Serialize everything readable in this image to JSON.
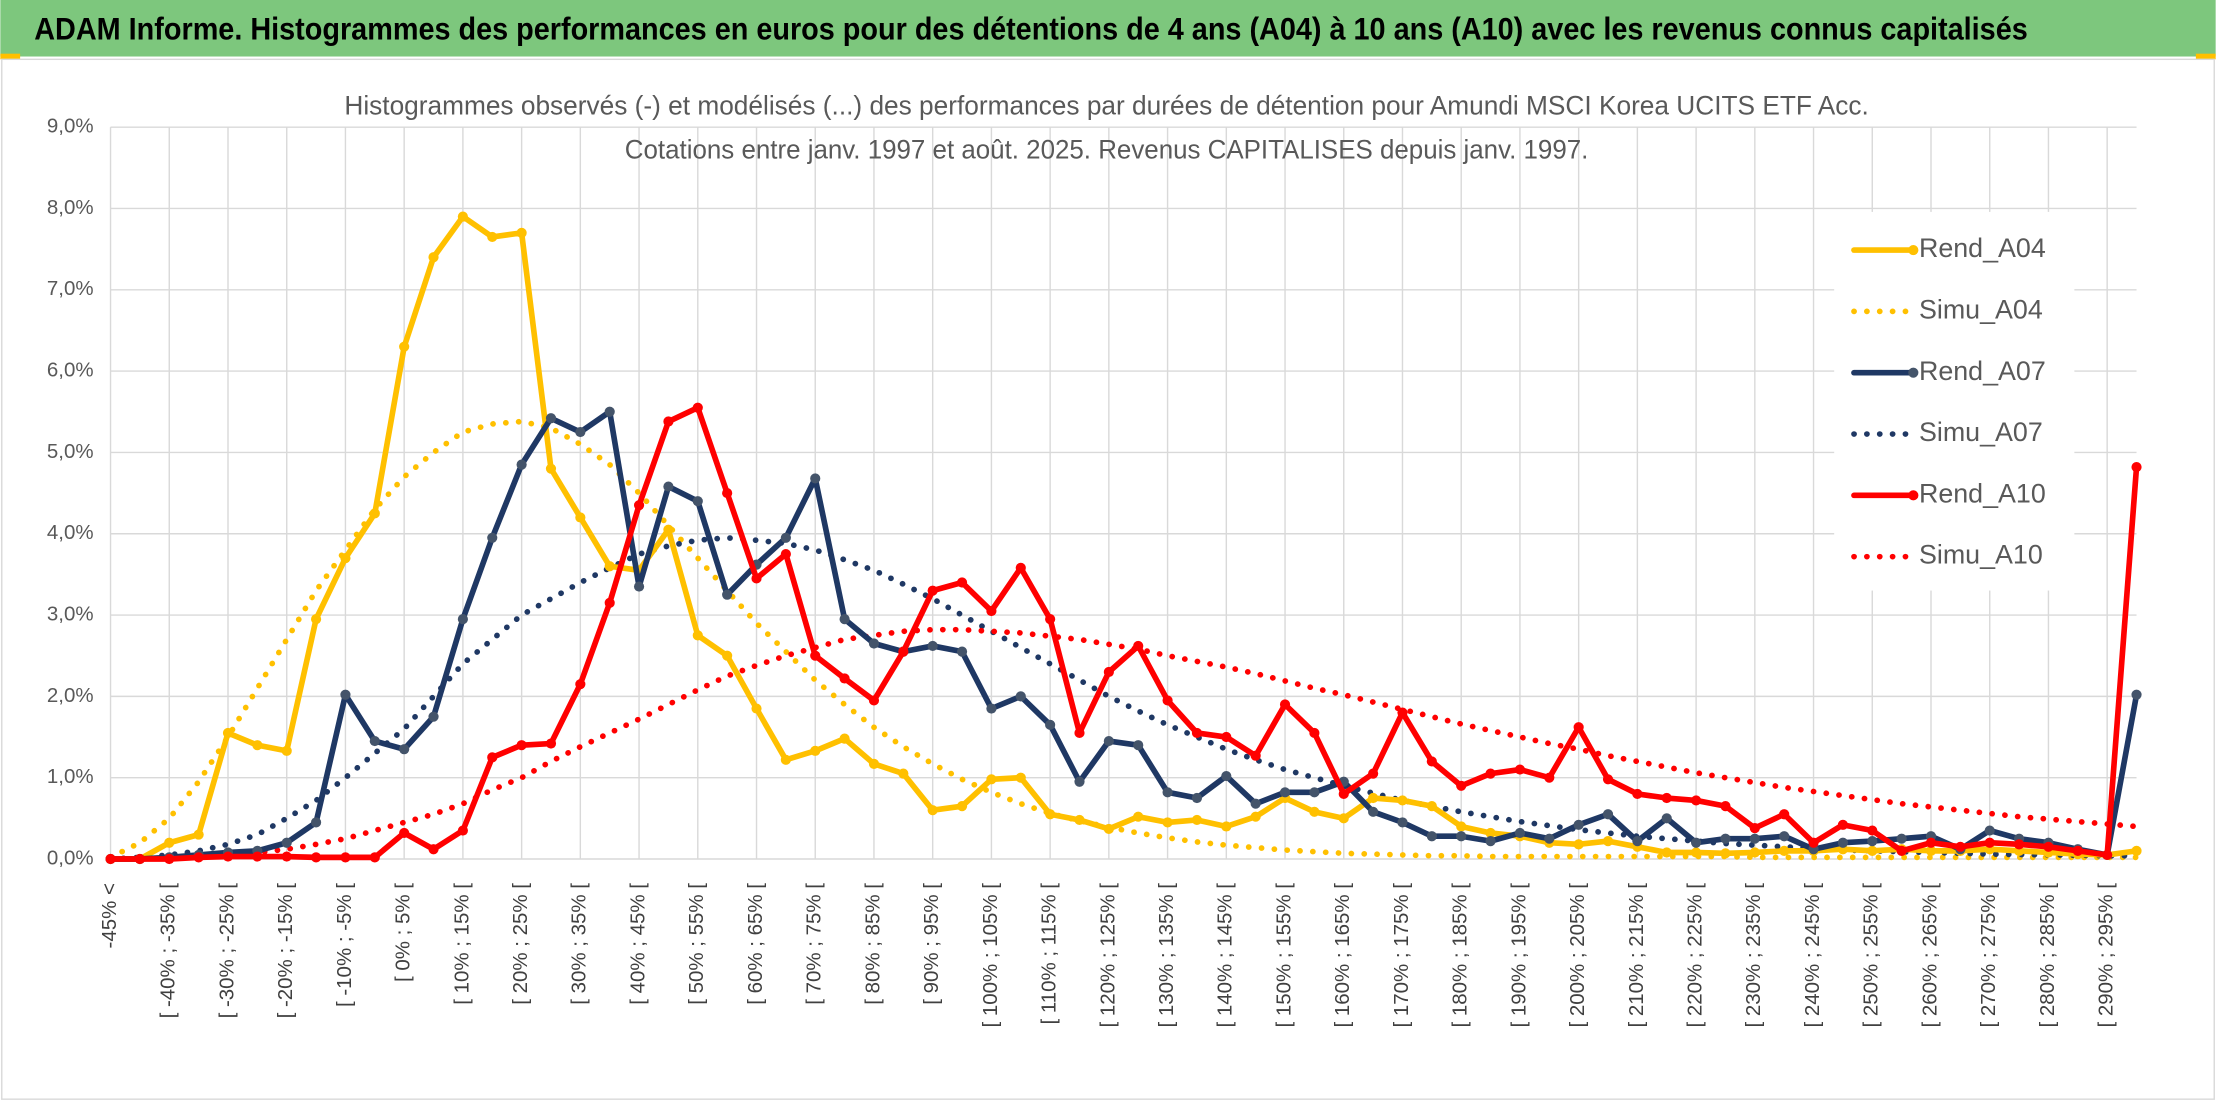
{
  "header": {
    "title": "ADAM Informe. Histogrammes des performances en euros pour des détentions de 4 ans (A04) à 10 ans (A10) avec les revenus connus capitalisés"
  },
  "chart_data": {
    "type": "line",
    "title": "Histogrammes observés (-) et modélisés (...) des performances par durées de détention pour Amundi MSCI Korea UCITS ETF Acc.",
    "subtitle": "Cotations entre janv. 1997 et août. 2025. Revenus CAPITALISES depuis janv. 1997.",
    "categories": [
      "-45% <",
      null,
      "[ -40% ; -35% [",
      null,
      "[ -30% ; -25% [",
      null,
      "[ -20% ; -15% [",
      null,
      "[ -10% ; -5% [",
      null,
      "[ 0% ; 5% [",
      null,
      "[ 10% ; 15% [",
      null,
      "[ 20% ; 25% [",
      null,
      "[ 30% ; 35% [",
      null,
      "[ 40% ; 45% [",
      null,
      "[ 50% ; 55% [",
      null,
      "[ 60% ; 65% [",
      null,
      "[ 70% ; 75% [",
      null,
      "[ 80% ; 85% [",
      null,
      "[ 90% ; 95% [",
      null,
      "[ 100% ; 105% [",
      null,
      "[ 110% ; 115% [",
      null,
      "[ 120% ; 125% [",
      null,
      "[ 130% ; 135% [",
      null,
      "[ 140% ; 145% [",
      null,
      "[ 150% ; 155% [",
      null,
      "[ 160% ; 165% [",
      null,
      "[ 170% ; 175% [",
      null,
      "[ 180% ; 185% [",
      null,
      "[ 190% ; 195% [",
      null,
      "[ 200% ; 205% [",
      null,
      "[ 210% ; 215% [",
      null,
      "[ 220% ; 225% [",
      null,
      "[ 230% ; 235% [",
      null,
      "[ 240% ; 245% [",
      null,
      "[ 250% ; 255% [",
      null,
      "[ 260% ; 265% [",
      null,
      "[ 270% ; 275% [",
      null,
      "[ 280% ; 285% [",
      null,
      "[ 290% ; 295% [",
      null
    ],
    "series": [
      {
        "name": "Rend_A04",
        "color": "#ffc000",
        "style": "solid",
        "values": [
          0,
          0,
          0.2,
          0.3,
          1.55,
          1.4,
          1.33,
          2.95,
          3.7,
          4.25,
          6.3,
          7.4,
          7.9,
          7.65,
          7.7,
          4.8,
          4.2,
          3.6,
          3.55,
          4.05,
          2.75,
          2.5,
          1.85,
          1.22,
          1.33,
          1.48,
          1.17,
          1.05,
          0.6,
          0.65,
          0.98,
          1.0,
          0.55,
          0.48,
          0.37,
          0.52,
          0.45,
          0.48,
          0.4,
          0.52,
          0.75,
          0.58,
          0.5,
          0.75,
          0.72,
          0.65,
          0.4,
          0.32,
          0.28,
          0.2,
          0.18,
          0.22,
          0.15,
          0.08,
          0.08,
          0.07,
          0.08,
          0.1,
          0.1,
          0.12,
          0.1,
          0.12,
          0.1,
          0.1,
          0.12,
          0.1,
          0.08,
          0.06,
          0.05,
          0.1
        ]
      },
      {
        "name": "Simu_A04",
        "color": "#ffc000",
        "style": "dotted",
        "values": [
          0.02,
          0.2,
          0.5,
          0.95,
          1.5,
          2.1,
          2.7,
          3.3,
          3.8,
          4.3,
          4.7,
          5.0,
          5.25,
          5.35,
          5.38,
          5.3,
          5.1,
          4.85,
          4.5,
          4.1,
          3.7,
          3.3,
          2.9,
          2.55,
          2.2,
          1.9,
          1.62,
          1.38,
          1.17,
          0.98,
          0.82,
          0.68,
          0.56,
          0.47,
          0.39,
          0.32,
          0.26,
          0.21,
          0.17,
          0.14,
          0.11,
          0.09,
          0.07,
          0.06,
          0.05,
          0.04,
          0.04,
          0.03,
          0.03,
          0.03,
          0.03,
          0.03,
          0.03,
          0.03,
          0.03,
          0.03,
          0.02,
          0.02,
          0.02,
          0.02,
          0.02,
          0.02,
          0.02,
          0.02,
          0.02,
          0.02,
          0.02,
          0.02,
          0.02,
          0.02
        ]
      },
      {
        "name": "Rend_A07",
        "color": "#1f3864",
        "style": "solid",
        "values": [
          0,
          0,
          0.02,
          0.05,
          0.08,
          0.1,
          0.2,
          0.45,
          2.02,
          1.45,
          1.35,
          1.75,
          2.95,
          3.95,
          4.85,
          5.42,
          5.25,
          5.5,
          3.35,
          4.58,
          4.4,
          3.25,
          3.62,
          3.95,
          4.68,
          2.95,
          2.65,
          2.55,
          2.62,
          2.55,
          1.85,
          2.0,
          1.65,
          0.95,
          1.45,
          1.4,
          0.82,
          0.75,
          1.02,
          0.68,
          0.82,
          0.82,
          0.95,
          0.58,
          0.45,
          0.28,
          0.28,
          0.22,
          0.32,
          0.25,
          0.42,
          0.55,
          0.22,
          0.5,
          0.2,
          0.25,
          0.25,
          0.28,
          0.12,
          0.2,
          0.22,
          0.25,
          0.28,
          0.12,
          0.35,
          0.25,
          0.2,
          0.12,
          0.05,
          2.02
        ]
      },
      {
        "name": "Simu_A07",
        "color": "#1f3864",
        "style": "dotted",
        "values": [
          0,
          0.02,
          0.05,
          0.1,
          0.18,
          0.3,
          0.5,
          0.72,
          1.0,
          1.3,
          1.6,
          2.0,
          2.4,
          2.7,
          3.0,
          3.2,
          3.4,
          3.58,
          3.75,
          3.85,
          3.92,
          3.95,
          3.92,
          3.88,
          3.8,
          3.68,
          3.55,
          3.38,
          3.2,
          3.0,
          2.8,
          2.6,
          2.4,
          2.2,
          2.0,
          1.82,
          1.65,
          1.5,
          1.35,
          1.22,
          1.1,
          1.0,
          0.9,
          0.81,
          0.72,
          0.65,
          0.58,
          0.52,
          0.46,
          0.41,
          0.36,
          0.32,
          0.28,
          0.25,
          0.22,
          0.19,
          0.17,
          0.15,
          0.13,
          0.11,
          0.1,
          0.09,
          0.08,
          0.07,
          0.06,
          0.055,
          0.05,
          0.045,
          0.04,
          0.04
        ]
      },
      {
        "name": "Rend_A10",
        "color": "#ff0000",
        "style": "solid",
        "values": [
          0,
          0,
          0,
          0.02,
          0.03,
          0.03,
          0.03,
          0.02,
          0.02,
          0.02,
          0.32,
          0.12,
          0.35,
          1.25,
          1.4,
          1.42,
          2.15,
          3.15,
          4.35,
          5.38,
          5.55,
          4.5,
          3.45,
          3.75,
          2.5,
          2.22,
          1.95,
          2.55,
          3.3,
          3.4,
          3.05,
          3.58,
          2.95,
          1.55,
          2.3,
          2.62,
          1.95,
          1.55,
          1.5,
          1.27,
          1.9,
          1.55,
          0.8,
          1.05,
          1.8,
          1.2,
          0.9,
          1.05,
          1.1,
          1.0,
          1.62,
          0.98,
          0.8,
          0.75,
          0.72,
          0.65,
          0.38,
          0.55,
          0.2,
          0.42,
          0.35,
          0.1,
          0.2,
          0.15,
          0.2,
          0.18,
          0.15,
          0.1,
          0.05,
          4.82
        ]
      },
      {
        "name": "Simu_A10",
        "color": "#ff0000",
        "style": "dotted",
        "values": [
          0,
          0.01,
          0.02,
          0.03,
          0.05,
          0.08,
          0.12,
          0.18,
          0.25,
          0.35,
          0.45,
          0.55,
          0.68,
          0.85,
          1.0,
          1.2,
          1.38,
          1.55,
          1.72,
          1.9,
          2.08,
          2.25,
          2.38,
          2.5,
          2.6,
          2.7,
          2.75,
          2.8,
          2.82,
          2.82,
          2.8,
          2.78,
          2.74,
          2.7,
          2.64,
          2.58,
          2.5,
          2.43,
          2.36,
          2.28,
          2.19,
          2.1,
          2.02,
          1.93,
          1.84,
          1.75,
          1.66,
          1.58,
          1.5,
          1.42,
          1.35,
          1.27,
          1.2,
          1.13,
          1.06,
          1.0,
          0.94,
          0.88,
          0.83,
          0.78,
          0.73,
          0.68,
          0.64,
          0.6,
          0.56,
          0.52,
          0.49,
          0.46,
          0.43,
          0.4
        ]
      }
    ],
    "ylim": [
      0,
      9
    ],
    "yticks": [
      {
        "value": 0,
        "label": "0,0%"
      },
      {
        "value": 1,
        "label": "1,0%"
      },
      {
        "value": 2,
        "label": "2,0%"
      },
      {
        "value": 3,
        "label": "3,0%"
      },
      {
        "value": 4,
        "label": "4,0%"
      },
      {
        "value": 5,
        "label": "5,0%"
      },
      {
        "value": 6,
        "label": "6,0%"
      },
      {
        "value": 7,
        "label": "7,0%"
      },
      {
        "value": 8,
        "label": "8,0%"
      },
      {
        "value": 9,
        "label": "9,0%"
      }
    ],
    "grid": true,
    "legend": "right"
  }
}
